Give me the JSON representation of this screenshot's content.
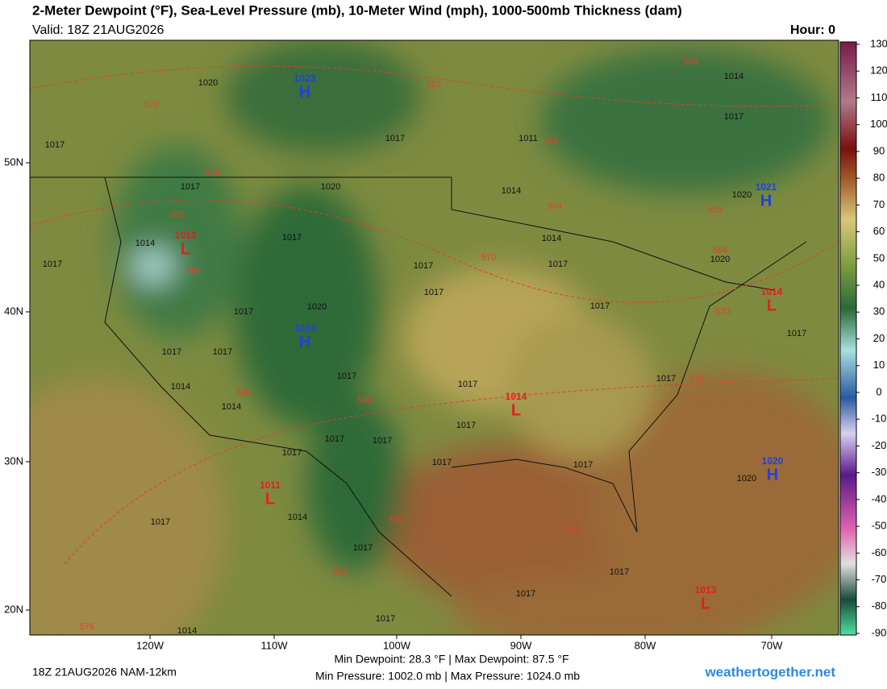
{
  "header": {
    "title": "2-Meter Dewpoint (°F), Sea-Level Pressure (mb), 10-Meter Wind (mph), 1000-500mb Thickness (dam)",
    "valid": "Valid: 18Z 21AUG2026",
    "hour": "Hour: 0"
  },
  "colorbar": {
    "ticks": [
      130,
      120,
      110,
      100,
      90,
      80,
      70,
      60,
      50,
      40,
      30,
      20,
      10,
      0,
      -10,
      -20,
      -30,
      -40,
      -50,
      -60,
      -70,
      -80,
      -90
    ]
  },
  "lat_labels": [
    "50N",
    "40N",
    "30N",
    "20N"
  ],
  "lon_labels": [
    "120W",
    "110W",
    "100W",
    "90W",
    "80W",
    "70W"
  ],
  "pressure_centers": [
    {
      "type": "H",
      "value": 1023
    },
    {
      "type": "H",
      "value": 1024
    },
    {
      "type": "H",
      "value": 1021
    },
    {
      "type": "H",
      "value": 1020
    },
    {
      "type": "L",
      "value": 1013
    },
    {
      "type": "L",
      "value": 1011
    },
    {
      "type": "L",
      "value": 1014
    },
    {
      "type": "L",
      "value": 1014
    },
    {
      "type": "L",
      "value": 1013
    }
  ],
  "isobar_labels": [
    1020,
    1017,
    1017,
    1014,
    1017,
    1017,
    1017,
    1017,
    1020,
    1017,
    1017,
    1017,
    1014,
    1014,
    1017,
    1017,
    1017,
    1017,
    1017,
    1017,
    1017,
    1014,
    1017,
    1017,
    1017,
    1017,
    1017,
    1017,
    1014,
    1014,
    1020,
    1011,
    1017,
    1014,
    1017,
    1020,
    1020,
    1017,
    1020,
    1017,
    1017,
    1014,
    1017
  ],
  "thickness_labels": [
    570,
    576,
    582,
    588,
    552,
    558,
    564,
    570,
    558,
    564,
    570,
    576,
    588,
    588,
    582,
    576,
    582,
    576,
    546
  ],
  "footer": {
    "run": "18Z 21AUG2026 NAM-12km",
    "dewpoint": "Min Dewpoint: 28.3 °F | Max Dewpoint:  87.5 °F",
    "pressure": "Min Pressure: 1002.0 mb | Max Pressure: 1024.0 mb",
    "site": "weathertogether.net"
  }
}
